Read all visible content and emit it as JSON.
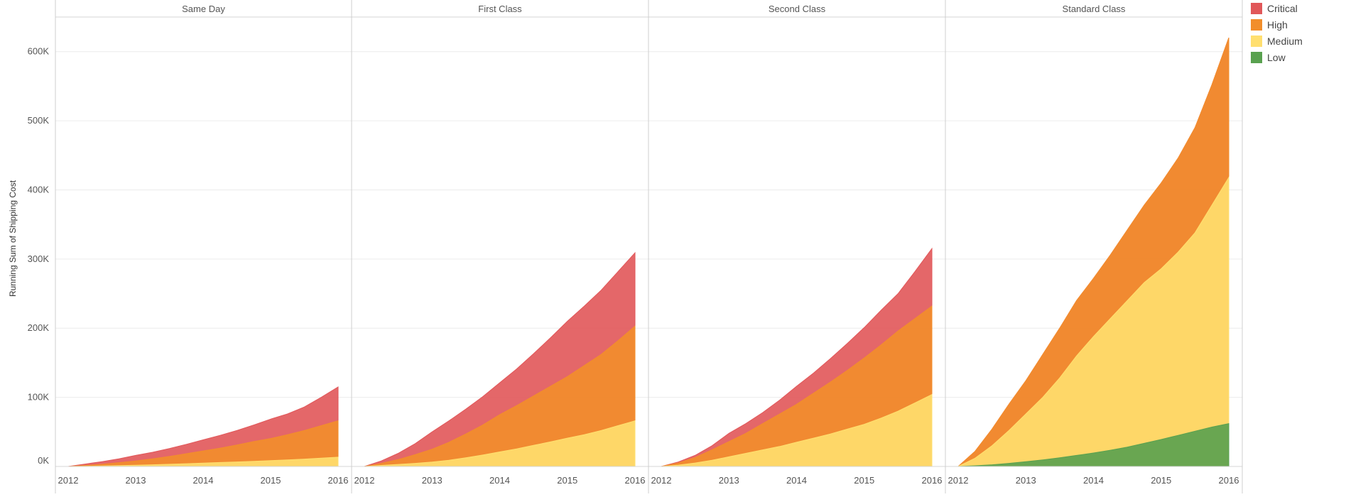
{
  "chart_data": {
    "type": "area",
    "ylabel": "Running Sum of Shipping Cost",
    "ylim": [
      0,
      650000
    ],
    "y_ticks": [
      {
        "value": 0,
        "label": "0K"
      },
      {
        "value": 100000,
        "label": "100K"
      },
      {
        "value": 200000,
        "label": "200K"
      },
      {
        "value": 300000,
        "label": "300K"
      },
      {
        "value": 400000,
        "label": "400K"
      },
      {
        "value": 500000,
        "label": "500K"
      },
      {
        "value": 600000,
        "label": "600K"
      }
    ],
    "x_ticks": [
      "2012",
      "2013",
      "2014",
      "2015",
      "2016"
    ],
    "x": [
      2012.0,
      2012.25,
      2012.5,
      2012.75,
      2013.0,
      2013.25,
      2013.5,
      2013.75,
      2014.0,
      2014.25,
      2014.5,
      2014.75,
      2015.0,
      2015.25,
      2015.5,
      2015.75,
      2016.0
    ],
    "legend": {
      "position": "right",
      "items": [
        {
          "label": "Critical",
          "color": "#e15759"
        },
        {
          "label": "High",
          "color": "#f28e2b"
        },
        {
          "label": "Medium",
          "color": "#ffdf6f"
        },
        {
          "label": "Low",
          "color": "#59a14f"
        }
      ]
    },
    "panels": [
      {
        "title": "Same Day",
        "series": [
          {
            "name": "Low",
            "values": [
              0,
              0,
              0,
              0,
              0,
              0,
              0,
              0,
              0,
              0,
              0,
              0,
              0,
              0,
              0,
              0,
              0
            ]
          },
          {
            "name": "Medium",
            "values": [
              0,
              300,
              700,
              1200,
              1800,
              2500,
              3200,
              4000,
              4800,
              5700,
              6600,
              7500,
              8500,
              9500,
              10700,
              12000,
              13500
            ]
          },
          {
            "name": "High",
            "values": [
              0,
              1500,
              3200,
              5500,
              8000,
              11000,
              14500,
              18500,
              22500,
              26500,
              31000,
              36000,
              40500,
              46000,
              52000,
              59000,
              66000
            ]
          },
          {
            "name": "Critical",
            "values": [
              0,
              3500,
              7000,
              11000,
              16000,
              20500,
              26000,
              32000,
              38500,
              45000,
              52000,
              60000,
              68500,
              76000,
              86000,
              100000,
              115000
            ]
          }
        ]
      },
      {
        "title": "First Class",
        "series": [
          {
            "name": "Low",
            "values": [
              0,
              0,
              0,
              0,
              0,
              0,
              0,
              0,
              0,
              0,
              0,
              0,
              0,
              0,
              0,
              0,
              0
            ]
          },
          {
            "name": "Medium",
            "values": [
              0,
              1500,
              3000,
              4500,
              6500,
              9000,
              12500,
              16500,
              21000,
              25500,
              30500,
              35500,
              41000,
              46000,
              52000,
              59000,
              66000
            ]
          },
          {
            "name": "High",
            "values": [
              0,
              4500,
              10000,
              17000,
              25000,
              35000,
              47000,
              60000,
              75000,
              88000,
              102000,
              116000,
              130000,
              146000,
              162000,
              182000,
              203000
            ]
          },
          {
            "name": "Critical",
            "values": [
              0,
              8000,
              19000,
              33000,
              50000,
              66000,
              83000,
              101000,
              121000,
              141000,
              163000,
              186000,
              210000,
              232000,
              255000,
              282000,
              309000
            ]
          }
        ]
      },
      {
        "title": "Second Class",
        "series": [
          {
            "name": "Low",
            "values": [
              0,
              0,
              0,
              0,
              0,
              0,
              0,
              0,
              0,
              0,
              0,
              0,
              0,
              0,
              0,
              0,
              0
            ]
          },
          {
            "name": "Medium",
            "values": [
              0,
              2000,
              5000,
              9000,
              14000,
              19000,
              24000,
              29000,
              35000,
              41000,
              47000,
              54000,
              61000,
              70000,
              80000,
              92000,
              104000
            ]
          },
          {
            "name": "High",
            "values": [
              0,
              5000,
              13000,
              24000,
              36000,
              48000,
              62000,
              76000,
              90000,
              106000,
              122000,
              139000,
              157000,
              176000,
              196000,
              214000,
              232000
            ]
          },
          {
            "name": "Critical",
            "values": [
              0,
              6500,
              16000,
              30000,
              48000,
              62000,
              78000,
              96000,
              116000,
              135000,
              156000,
              178000,
              201000,
              226000,
              250000,
              282000,
              315000
            ]
          }
        ]
      },
      {
        "title": "Standard Class",
        "series": [
          {
            "name": "Low",
            "values": [
              0,
              1000,
              2500,
              4500,
              7000,
              9500,
              12500,
              16000,
              19500,
              23500,
              28000,
              33500,
              39000,
              45000,
              51000,
              57000,
              62000
            ]
          },
          {
            "name": "Medium",
            "values": [
              0,
              12000,
              30000,
              52000,
              76000,
              100000,
              128000,
              160000,
              188000,
              214000,
              240000,
              266000,
              286000,
              310000,
              338000,
              378000,
              418000
            ]
          },
          {
            "name": "High",
            "values": [
              0,
              22000,
              54000,
              90000,
              124000,
              162000,
              200000,
              240000,
              272000,
              306000,
              342000,
              378000,
              410000,
              446000,
              490000,
              552000,
              620000
            ]
          },
          {
            "name": "Critical",
            "values": [
              0,
              22000,
              54000,
              90000,
              124000,
              162000,
              200000,
              240000,
              272000,
              306000,
              342000,
              378000,
              410000,
              446000,
              490000,
              552000,
              620000
            ]
          }
        ]
      }
    ]
  }
}
